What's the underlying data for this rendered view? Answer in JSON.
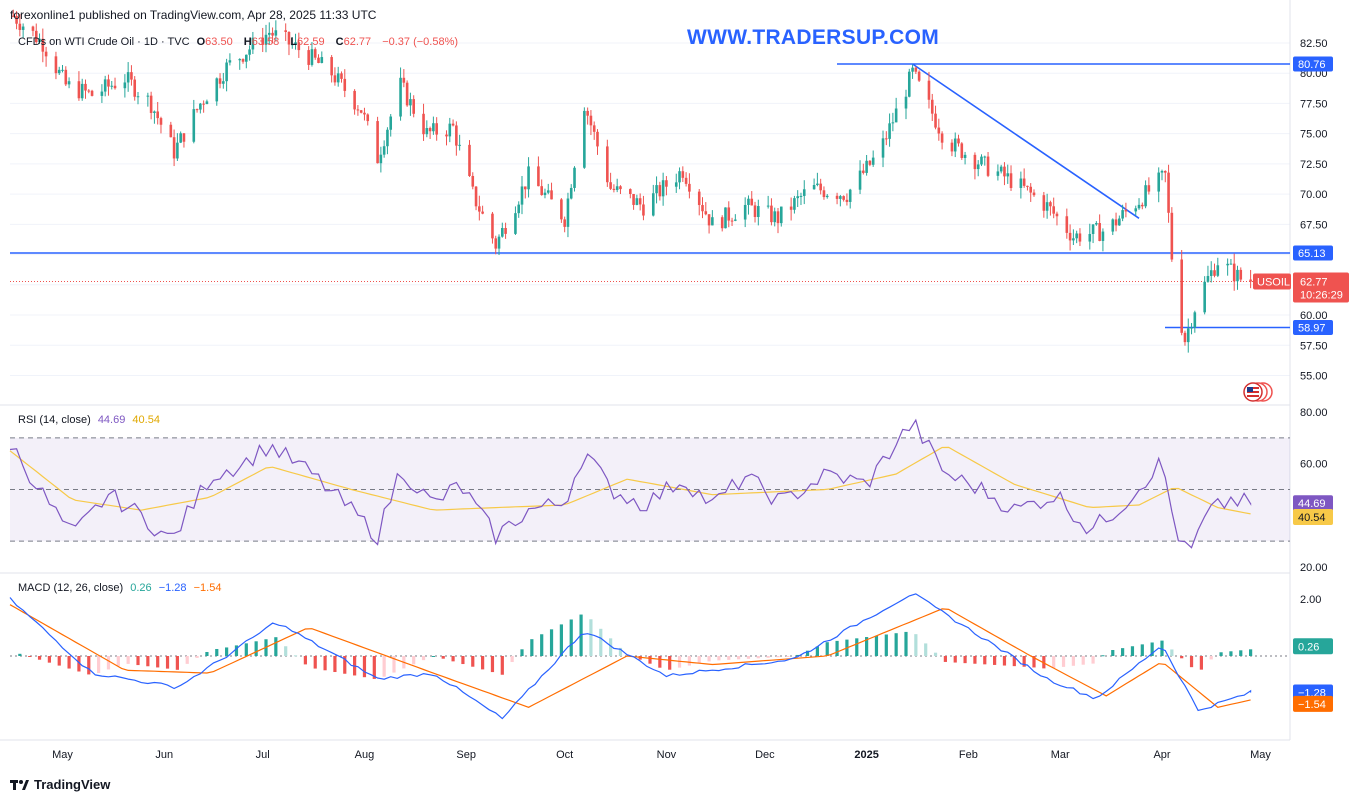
{
  "header": {
    "publisher": "forexonline1 published on TradingView.com, Apr 28, 2025 11:33 UTC"
  },
  "watermark": "WWW.TRADERSUP.COM",
  "instrument": {
    "name": "CFDs on WTI Crude Oil · 1D · TVC",
    "open_label": "O",
    "open": "63.50",
    "high_label": "H",
    "high": "63.58",
    "low_label": "L",
    "low": "62.59",
    "close_label": "C",
    "close": "62.77",
    "change": "−0.37 (−0.58%)"
  },
  "symbol_tag": "USOIL",
  "countdown": "10:26:29",
  "rsi_legend": {
    "name": "RSI (14, close)",
    "value": "44.69",
    "ma": "40.54"
  },
  "macd_legend": {
    "name": "MACD (12, 26, close)",
    "hist": "0.26",
    "macd": "−1.28",
    "signal": "−1.54"
  },
  "footer": {
    "brand": "TradingView"
  },
  "colors": {
    "up": "#26a69a",
    "down": "#ef5350",
    "blue": "#2962ff",
    "rsi": "#7e57c2",
    "rsi_ma": "#f7c948",
    "signal": "#ff6d00",
    "macd": "#2962ff"
  },
  "chart_data": [
    {
      "type": "candlestick",
      "title": "CFDs on WTI Crude Oil · 1D · TVC",
      "x_ticks": [
        "May",
        "Jun",
        "Jul",
        "Aug",
        "Sep",
        "Oct",
        "Nov",
        "Dec",
        "2025",
        "Feb",
        "Mar",
        "Apr",
        "May"
      ],
      "y_ticks": [
        "82.50",
        "80.00",
        "77.50",
        "75.00",
        "72.50",
        "70.00",
        "67.50",
        "65.00",
        "62.50",
        "60.00",
        "57.50",
        "55.00"
      ],
      "ylim": [
        53.3,
        84.2
      ],
      "price_labels": {
        "resistance": "80.76",
        "support": "65.13",
        "low_line": "58.97",
        "last": "62.77"
      },
      "horizontal_lines": [
        80.76,
        65.13,
        58.97
      ],
      "trendline": [
        [
          "2025-01-15",
          80.76
        ],
        [
          "2025-03-25",
          68.0
        ]
      ],
      "path": [
        [
          "2024-04-15",
          85.0
        ],
        [
          "2024-04-25",
          82.5
        ],
        [
          "2024-05-02",
          79.0
        ],
        [
          "2024-05-10",
          78.2
        ],
        [
          "2024-05-20",
          79.6
        ],
        [
          "2024-05-28",
          77.5
        ],
        [
          "2024-06-04",
          73.5
        ],
        [
          "2024-06-12",
          77.5
        ],
        [
          "2024-06-20",
          80.5
        ],
        [
          "2024-07-03",
          83.4
        ],
        [
          "2024-07-12",
          82.0
        ],
        [
          "2024-07-22",
          80.0
        ],
        [
          "2024-07-31",
          77.0
        ],
        [
          "2024-08-05",
          73.0
        ],
        [
          "2024-08-12",
          79.0
        ],
        [
          "2024-08-20",
          75.0
        ],
        [
          "2024-08-28",
          75.5
        ],
        [
          "2024-09-03",
          70.0
        ],
        [
          "2024-09-10",
          65.8
        ],
        [
          "2024-09-20",
          71.5
        ],
        [
          "2024-10-01",
          68.0
        ],
        [
          "2024-10-07",
          77.5
        ],
        [
          "2024-10-15",
          70.5
        ],
        [
          "2024-10-25",
          69.0
        ],
        [
          "2024-11-06",
          72.0
        ],
        [
          "2024-11-15",
          67.5
        ],
        [
          "2024-11-25",
          69.0
        ],
        [
          "2024-12-05",
          68.0
        ],
        [
          "2024-12-15",
          70.5
        ],
        [
          "2024-12-26",
          70.0
        ],
        [
          "2025-01-05",
          73.5
        ],
        [
          "2025-01-15",
          80.0
        ],
        [
          "2025-01-25",
          74.5
        ],
        [
          "2025-02-05",
          72.5
        ],
        [
          "2025-02-15",
          71.0
        ],
        [
          "2025-02-25",
          69.0
        ],
        [
          "2025-03-05",
          66.5
        ],
        [
          "2025-03-15",
          67.0
        ],
        [
          "2025-03-25",
          69.5
        ],
        [
          "2025-04-02",
          71.5
        ],
        [
          "2025-04-05",
          61.5
        ],
        [
          "2025-04-08",
          58.0
        ],
        [
          "2025-04-12",
          61.5
        ],
        [
          "2025-04-18",
          64.5
        ],
        [
          "2025-04-25",
          63.0
        ],
        [
          "2025-04-28",
          62.77
        ]
      ]
    },
    {
      "type": "line",
      "title": "RSI (14, close)",
      "y_ticks": [
        "80.00",
        "60.00",
        "20.00"
      ],
      "ylim": [
        20,
        80
      ],
      "bands": [
        70,
        50,
        30
      ],
      "value_labels": {
        "rsi": "44.69",
        "ma": "40.54"
      },
      "series": [
        {
          "name": "RSI",
          "values": [
            [
              "2024-04-15",
              68
            ],
            [
              "2024-04-25",
              48
            ],
            [
              "2024-05-04",
              32
            ],
            [
              "2024-05-15",
              48
            ],
            [
              "2024-05-25",
              40
            ],
            [
              "2024-06-03",
              30
            ],
            [
              "2024-06-15",
              55
            ],
            [
              "2024-06-25",
              60
            ],
            [
              "2024-07-03",
              67
            ],
            [
              "2024-07-15",
              57
            ],
            [
              "2024-07-28",
              42
            ],
            [
              "2024-08-05",
              32
            ],
            [
              "2024-08-12",
              58
            ],
            [
              "2024-08-22",
              44
            ],
            [
              "2024-08-30",
              52
            ],
            [
              "2024-09-10",
              32
            ],
            [
              "2024-09-20",
              42
            ],
            [
              "2024-10-01",
              45
            ],
            [
              "2024-10-07",
              65
            ],
            [
              "2024-10-15",
              50
            ],
            [
              "2024-10-25",
              44
            ],
            [
              "2024-11-06",
              54
            ],
            [
              "2024-11-15",
              44
            ],
            [
              "2024-11-25",
              55
            ],
            [
              "2024-12-06",
              45
            ],
            [
              "2024-12-20",
              56
            ],
            [
              "2025-01-01",
              52
            ],
            [
              "2025-01-10",
              68
            ],
            [
              "2025-01-15",
              76
            ],
            [
              "2025-01-25",
              56
            ],
            [
              "2025-02-05",
              50
            ],
            [
              "2025-02-15",
              42
            ],
            [
              "2025-02-28",
              48
            ],
            [
              "2025-03-10",
              34
            ],
            [
              "2025-03-20",
              44
            ],
            [
              "2025-04-01",
              61
            ],
            [
              "2025-04-05",
              35
            ],
            [
              "2025-04-09",
              24
            ],
            [
              "2025-04-15",
              41
            ],
            [
              "2025-04-22",
              46
            ],
            [
              "2025-04-28",
              44.69
            ]
          ]
        },
        {
          "name": "RSI MA",
          "values": [
            [
              "2024-04-15",
              65
            ],
            [
              "2024-05-04",
              46
            ],
            [
              "2024-05-25",
              42
            ],
            [
              "2024-06-15",
              47
            ],
            [
              "2024-07-03",
              59
            ],
            [
              "2024-07-28",
              50
            ],
            [
              "2024-08-22",
              42
            ],
            [
              "2024-09-10",
              43
            ],
            [
              "2024-10-01",
              44
            ],
            [
              "2024-10-20",
              54
            ],
            [
              "2024-11-15",
              48
            ],
            [
              "2024-12-20",
              50
            ],
            [
              "2025-01-10",
              56
            ],
            [
              "2025-01-25",
              67
            ],
            [
              "2025-02-15",
              52
            ],
            [
              "2025-03-10",
              43
            ],
            [
              "2025-03-25",
              44
            ],
            [
              "2025-04-05",
              51
            ],
            [
              "2025-04-18",
              43
            ],
            [
              "2025-04-28",
              40.54
            ]
          ]
        }
      ]
    },
    {
      "type": "bar",
      "title": "MACD (12, 26, close)",
      "y_ticks": [
        "2.00"
      ],
      "ylim": [
        -3.2,
        2.3
      ],
      "value_labels": {
        "hist": "0.26",
        "macd": "−1.28",
        "signal": "−1.54"
      },
      "series": [
        {
          "name": "MACD",
          "values": [
            [
              "2024-04-15",
              2.0
            ],
            [
              "2024-05-10",
              -0.6
            ],
            [
              "2024-06-05",
              -1.1
            ],
            [
              "2024-06-20",
              0.0
            ],
            [
              "2024-07-05",
              1.2
            ],
            [
              "2024-08-05",
              -0.8
            ],
            [
              "2024-08-22",
              -0.6
            ],
            [
              "2024-09-12",
              -2.2
            ],
            [
              "2024-10-07",
              0.9
            ],
            [
              "2024-11-01",
              -0.7
            ],
            [
              "2024-12-10",
              -0.1
            ],
            [
              "2025-01-15",
              2.2
            ],
            [
              "2025-02-25",
              -0.8
            ],
            [
              "2025-03-12",
              -1.5
            ],
            [
              "2025-04-01",
              0.4
            ],
            [
              "2025-04-12",
              -1.9
            ],
            [
              "2025-04-28",
              -1.28
            ]
          ]
        },
        {
          "name": "Signal",
          "values": [
            [
              "2024-04-15",
              1.8
            ],
            [
              "2024-05-20",
              -0.5
            ],
            [
              "2024-06-15",
              -0.6
            ],
            [
              "2024-07-15",
              1.0
            ],
            [
              "2024-08-22",
              -0.6
            ],
            [
              "2024-09-20",
              -1.8
            ],
            [
              "2024-10-20",
              0.0
            ],
            [
              "2024-11-15",
              -0.3
            ],
            [
              "2024-12-20",
              0.0
            ],
            [
              "2025-01-25",
              1.7
            ],
            [
              "2025-02-20",
              0.0
            ],
            [
              "2025-03-15",
              -1.4
            ],
            [
              "2025-04-01",
              -0.2
            ],
            [
              "2025-04-18",
              -1.8
            ],
            [
              "2025-04-28",
              -1.54
            ]
          ]
        }
      ]
    }
  ]
}
